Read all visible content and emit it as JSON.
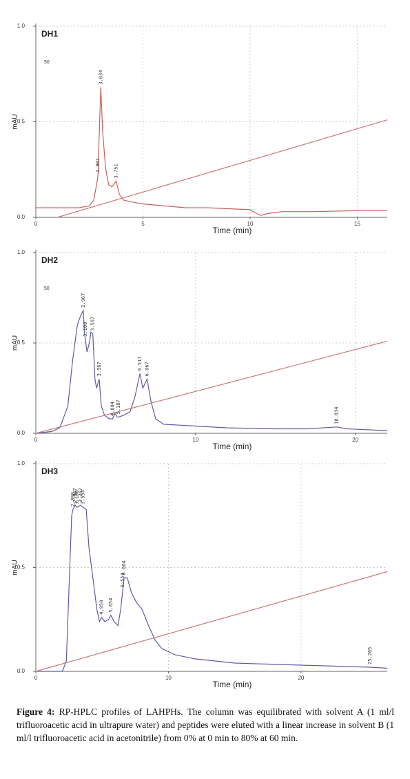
{
  "chart_data": [
    {
      "type": "line",
      "title": "DH1",
      "note": "50",
      "y_label": "mAU",
      "x_label": "Time (min)",
      "xlim": [
        0,
        16.4
      ],
      "ylim": [
        0,
        1
      ],
      "xticks": [
        0,
        5,
        10,
        15
      ],
      "yticks": [
        {
          "value": 0,
          "label": "0.0"
        },
        0.5,
        {
          "value": 1,
          "label": "1.0"
        }
      ],
      "grid": true,
      "series": [
        {
          "color": "#c8605c",
          "x": [
            0,
            1,
            2,
            2.5,
            2.7,
            2.85,
            2.901,
            2.95,
            3.034,
            3.12,
            3.25,
            3.4,
            3.55,
            3.751,
            3.9,
            4.1,
            4.5,
            5,
            6,
            7,
            8,
            9,
            10,
            10.3,
            10.5,
            10.8,
            11.5,
            13,
            15,
            16.4
          ],
          "values": [
            0.05,
            0.05,
            0.05,
            0.06,
            0.09,
            0.18,
            0.22,
            0.4,
            0.68,
            0.45,
            0.26,
            0.17,
            0.16,
            0.19,
            0.12,
            0.09,
            0.08,
            0.07,
            0.06,
            0.05,
            0.05,
            0.045,
            0.04,
            0.02,
            0.01,
            0.02,
            0.03,
            0.03,
            0.035,
            0.035
          ]
        },
        {
          "color": "#c87878",
          "x": [
            1,
            16.4
          ],
          "values": [
            0,
            0.51
          ]
        }
      ],
      "peaks": [
        3.034,
        2.901,
        3.751
      ]
    },
    {
      "type": "line",
      "title": "DH2",
      "note": "50",
      "y_label": "mAU",
      "x_label": "Time (min)",
      "xlim": [
        0,
        22
      ],
      "ylim": [
        0,
        1
      ],
      "xticks": [
        0,
        10,
        20
      ],
      "yticks": [
        {
          "value": 0,
          "label": "0.0"
        },
        0.5,
        {
          "value": 1,
          "label": "1.0"
        }
      ],
      "grid": true,
      "series": [
        {
          "color": "#5c5ca8",
          "x": [
            0,
            1,
            1.5,
            2,
            2.3,
            2.6,
            2.8,
            2.967,
            3.05,
            3.1,
            3.2,
            3.35,
            3.45,
            3.567,
            3.7,
            3.8,
            3.967,
            4.1,
            4.3,
            4.6,
            4.804,
            4.95,
            5.1,
            5.187,
            5.5,
            5.9,
            6.2,
            6.517,
            6.7,
            6.967,
            7.2,
            7.5,
            8,
            9,
            10,
            12,
            15,
            17,
            18.834,
            19.5,
            22
          ],
          "values": [
            0,
            0.01,
            0.03,
            0.15,
            0.4,
            0.6,
            0.65,
            0.68,
            0.55,
            0.52,
            0.45,
            0.5,
            0.56,
            0.55,
            0.3,
            0.25,
            0.3,
            0.15,
            0.1,
            0.08,
            0.08,
            0.11,
            0.09,
            0.09,
            0.1,
            0.12,
            0.2,
            0.33,
            0.25,
            0.3,
            0.18,
            0.08,
            0.05,
            0.045,
            0.04,
            0.03,
            0.025,
            0.025,
            0.035,
            0.025,
            0.015
          ]
        },
        {
          "color": "#c87878",
          "x": [
            0,
            22
          ],
          "values": [
            0,
            0.51
          ]
        }
      ],
      "peaks": [
        2.967,
        {
          "value": 3.1,
          "label": "3.100"
        },
        3.567,
        3.967,
        4.804,
        5.187,
        6.517,
        6.967,
        18.834
      ]
    },
    {
      "type": "line",
      "title": "DH3",
      "y_label": "mAU",
      "x_label": "Time (min)",
      "xlim": [
        0,
        26.5
      ],
      "ylim": [
        0,
        1
      ],
      "xticks": [
        0,
        10,
        20
      ],
      "yticks": [
        {
          "value": 0,
          "label": "0.0"
        },
        0.5,
        {
          "value": 1,
          "label": "1.0"
        }
      ],
      "grid": true,
      "series": [
        {
          "color": "#5c5ca8",
          "x": [
            0,
            2,
            2.3,
            2.5,
            2.7,
            2.8,
            2.967,
            3.1,
            3.367,
            3.567,
            3.8,
            4.0,
            4.3,
            4.6,
            4.8,
            4.95,
            5.2,
            5.5,
            5.654,
            5.9,
            6.2,
            6.4,
            6.654,
            6.9,
            7.2,
            7.6,
            8,
            8.5,
            9,
            9.5,
            10.5,
            12,
            15,
            20,
            25.205,
            26.5
          ],
          "values": [
            0,
            0,
            0.05,
            0.4,
            0.75,
            0.78,
            0.8,
            0.79,
            0.8,
            0.79,
            0.78,
            0.6,
            0.45,
            0.3,
            0.24,
            0.26,
            0.24,
            0.25,
            0.27,
            0.24,
            0.22,
            0.3,
            0.45,
            0.45,
            0.38,
            0.33,
            0.3,
            0.22,
            0.15,
            0.11,
            0.08,
            0.06,
            0.04,
            0.03,
            0.02,
            0.015
          ]
        },
        {
          "color": "#c87878",
          "x": [
            0,
            26.5
          ],
          "values": [
            0,
            0.48
          ]
        }
      ],
      "peaks": [
        {
          "value": 2.8,
          "label": "2.800"
        },
        2.967,
        {
          "value": 3.1,
          "label": "3.100"
        },
        3.367,
        3.554,
        {
          "value": 4.95,
          "label": "4.950"
        },
        5.654,
        6.554,
        6.664,
        25.205
      ]
    }
  ],
  "caption": {
    "label": "Figure 4:",
    "text": "RP-HPLC profiles of LAHPHs. The column was equilibrated with solvent A (1 ml/l trifluoroacetic acid in ultrapure water) and peptides were eluted with a linear increase in solvent B (1 ml/l trifluoroacetic acid in acetonitrile) from 0% at 0 min to 80% at 60 min."
  }
}
